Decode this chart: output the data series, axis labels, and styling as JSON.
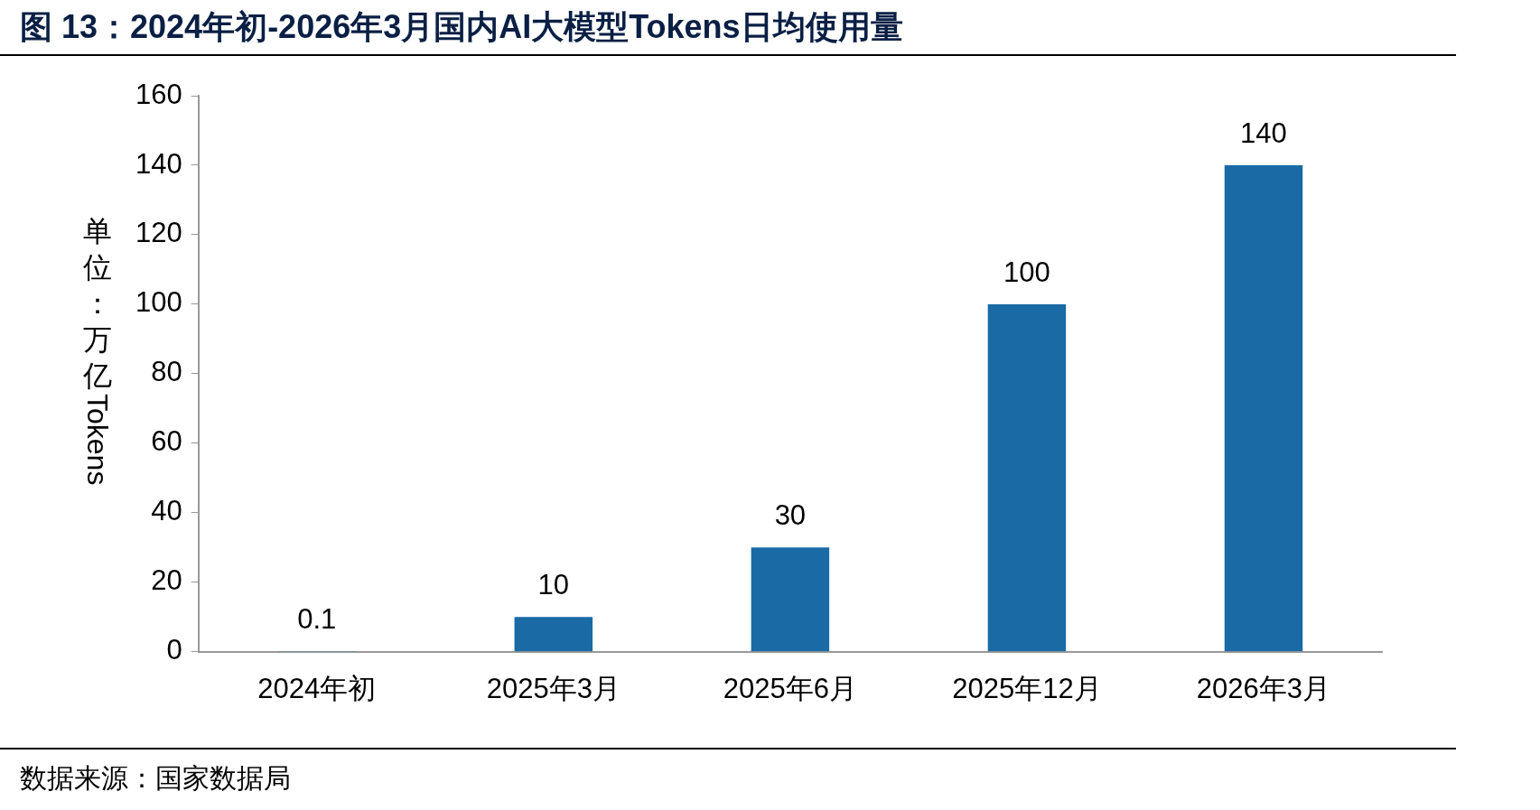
{
  "chart_data": {
    "type": "bar",
    "title": "图 13：2024年初-2026年3月国内AI大模型Tokens日均使用量",
    "ylabel": "单位：万亿Tokens",
    "categories": [
      "2024年初",
      "2025年3月",
      "2025年6月",
      "2025年12月",
      "2026年3月"
    ],
    "values": [
      0.1,
      10,
      30,
      100,
      140
    ],
    "color": "#1a6aa5",
    "ylim": [
      0,
      160
    ],
    "yticks": [
      0,
      20,
      40,
      60,
      80,
      100,
      120,
      140,
      160
    ],
    "grid": false,
    "legend": false,
    "data_labels": true,
    "annotations": [
      "数据来源：国家数据局"
    ]
  }
}
